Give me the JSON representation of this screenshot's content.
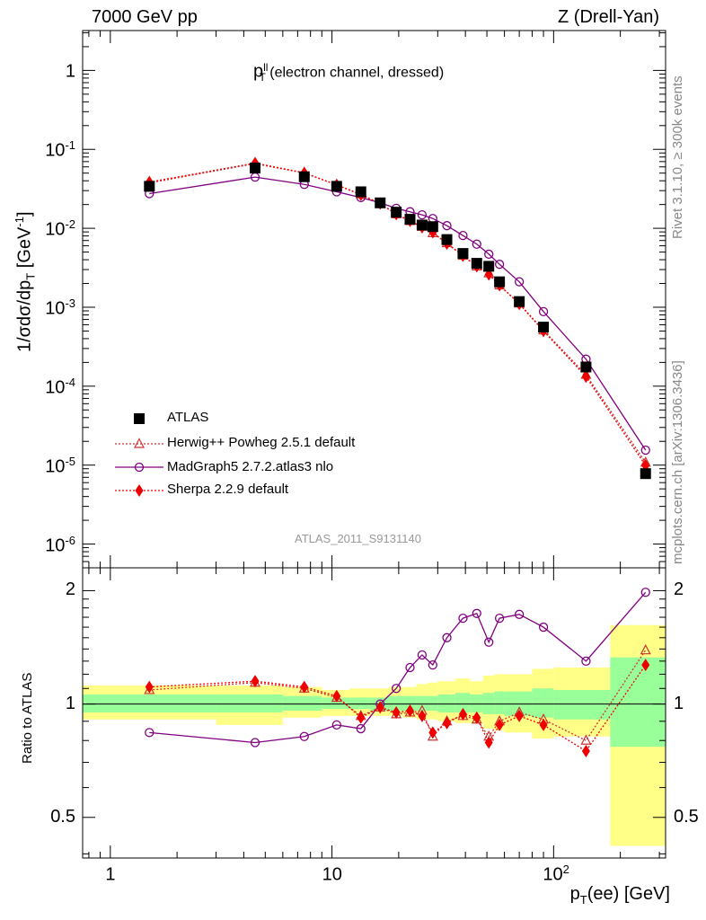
{
  "header": {
    "left": "7000 GeV pp",
    "right": "Z (Drell-Yan)"
  },
  "side_labels": {
    "rivet": "Rivet 3.1.10, ≥ 300k events",
    "mcplots": "mcplots.cern.ch [arXiv:1306.3436]"
  },
  "colors": {
    "atlas": "#000000",
    "herwig": "#cc3333",
    "madgraph": "#800080",
    "sherpa": "#ee0000",
    "band_inner": "#99ff99",
    "band_outer": "#ffff88"
  },
  "chart_data": [
    {
      "type": "scatter",
      "panel": "main",
      "title_main": "p",
      "title_sup": "ll",
      "title_sub": "T",
      "title_rest": "(electron channel, dressed)",
      "watermark": "ATLAS_2011_S9131140",
      "ylabel": "1/σdσ/dp_T [GeV^-1]",
      "ylabel_parts": {
        "a": "1/σdσ/dp",
        "sub": "T",
        "b": " [GeV",
        "sup": "-1",
        "c": "]"
      },
      "xscale": "log",
      "yscale": "log",
      "xlim": [
        0.75,
        320
      ],
      "ylim": [
        5e-07,
        3.2
      ],
      "ytick_labels": [
        {
          "v": 1,
          "m": "1",
          "e": ""
        },
        {
          "v": 0.1,
          "m": "10",
          "e": "-1"
        },
        {
          "v": 0.01,
          "m": "10",
          "e": "-2"
        },
        {
          "v": 0.001,
          "m": "10",
          "e": "-3"
        },
        {
          "v": 0.0001,
          "m": "10",
          "e": "-4"
        },
        {
          "v": 1e-05,
          "m": "10",
          "e": "-5"
        },
        {
          "v": 1e-06,
          "m": "10",
          "e": "-6"
        }
      ],
      "legend_position": "bottom-left",
      "x": [
        1.5,
        4.5,
        7.5,
        10.5,
        13.5,
        16.5,
        19.5,
        22.5,
        25.5,
        28.5,
        33,
        39,
        45,
        51,
        57,
        70,
        90,
        140,
        260
      ],
      "series": [
        {
          "name": "ATLAS",
          "marker": "square",
          "values": [
            0.034,
            0.058,
            0.045,
            0.034,
            0.029,
            0.021,
            0.016,
            0.013,
            0.011,
            0.0105,
            0.0072,
            0.0048,
            0.0036,
            0.0033,
            0.0021,
            0.00118,
            0.00056,
            0.000175,
            7.8e-06
          ]
        },
        {
          "name": "Herwig++ Powheg 2.5.1 default",
          "marker": "open-triangle",
          "line": "dotted",
          "values": [
            0.0375,
            0.066,
            0.05,
            0.0355,
            0.027,
            0.0205,
            0.0151,
            0.0124,
            0.0105,
            0.0087,
            0.0065,
            0.0045,
            0.0033,
            0.0027,
            0.0019,
            0.00112,
            0.00051,
            0.00014,
            1.08e-05
          ]
        },
        {
          "name": "MadGraph5 2.7.2.atlas3 nlo",
          "marker": "open-circle",
          "line": "solid",
          "values": [
            0.0275,
            0.0445,
            0.036,
            0.029,
            0.0245,
            0.021,
            0.0179,
            0.0162,
            0.0148,
            0.0133,
            0.0108,
            0.0081,
            0.0063,
            0.0047,
            0.0035,
            0.0021,
            0.00088,
            0.00022,
            1.55e-05
          ]
        },
        {
          "name": "Sherpa 2.2.9 default",
          "marker": "diamond",
          "line": "dotted",
          "values": [
            0.0385,
            0.067,
            0.0505,
            0.0355,
            0.0265,
            0.0206,
            0.0151,
            0.0124,
            0.0103,
            0.0089,
            0.0064,
            0.0045,
            0.0033,
            0.0026,
            0.0019,
            0.0011,
            0.0005,
            0.000132,
            9.9e-06
          ]
        }
      ],
      "legend_order": [
        "ATLAS",
        "Herwig++ Powheg 2.5.1 default",
        "MadGraph5 2.7.2.atlas3 nlo",
        "Sherpa 2.2.9 default"
      ]
    },
    {
      "type": "line",
      "panel": "ratio",
      "ylabel": "Ratio to ATLAS",
      "xlabel_parts": {
        "a": "p",
        "sub": "T",
        "b": "(ee) [GeV]"
      },
      "xscale": "log",
      "yscale": "log",
      "xlim": [
        0.75,
        320
      ],
      "ylim": [
        0.39,
        2.3
      ],
      "ytick_labels": [
        "2",
        "1",
        "0.5"
      ],
      "xtick_labels": [
        {
          "v": 1,
          "m": "1",
          "e": ""
        },
        {
          "v": 10,
          "m": "10",
          "e": ""
        },
        {
          "v": 100,
          "m": "10",
          "e": "2"
        }
      ],
      "reference_line": 1,
      "x": [
        1.5,
        4.5,
        7.5,
        10.5,
        13.5,
        16.5,
        19.5,
        22.5,
        25.5,
        28.5,
        33,
        39,
        45,
        51,
        57,
        70,
        90,
        140,
        260
      ],
      "series": [
        {
          "name": "Herwig++ Powheg 2.5.1 default",
          "marker": "open-triangle",
          "line": "dotted",
          "values": [
            1.09,
            1.14,
            1.1,
            1.04,
            0.93,
            0.98,
            0.94,
            0.95,
            0.96,
            0.82,
            0.9,
            0.93,
            0.91,
            0.82,
            0.9,
            0.95,
            0.91,
            0.8,
            1.39
          ]
        },
        {
          "name": "MadGraph5 2.7.2.atlas3 nlo",
          "marker": "open-circle",
          "line": "solid",
          "values": [
            0.84,
            0.79,
            0.82,
            0.88,
            0.86,
            1.0,
            1.1,
            1.25,
            1.35,
            1.27,
            1.5,
            1.69,
            1.74,
            1.46,
            1.69,
            1.73,
            1.6,
            1.3,
            1.98
          ]
        },
        {
          "name": "Sherpa 2.2.9 default",
          "marker": "diamond",
          "line": "dotted",
          "values": [
            1.11,
            1.15,
            1.11,
            1.05,
            0.92,
            0.98,
            0.95,
            0.96,
            0.93,
            0.84,
            0.89,
            0.94,
            0.92,
            0.79,
            0.88,
            0.93,
            0.88,
            0.75,
            1.27
          ]
        }
      ],
      "uncertainty_bins": [
        {
          "x0": 0.75,
          "x1": 3,
          "inner": [
            0.95,
            1.06
          ],
          "outer": [
            0.91,
            1.12
          ]
        },
        {
          "x0": 3,
          "x1": 6,
          "inner": [
            0.95,
            1.06
          ],
          "outer": [
            0.88,
            1.12
          ]
        },
        {
          "x0": 6,
          "x1": 9,
          "inner": [
            0.96,
            1.05
          ],
          "outer": [
            0.92,
            1.11
          ]
        },
        {
          "x0": 9,
          "x1": 12,
          "inner": [
            0.97,
            1.04
          ],
          "outer": [
            0.93,
            1.09
          ]
        },
        {
          "x0": 12,
          "x1": 15,
          "inner": [
            0.97,
            1.04
          ],
          "outer": [
            0.93,
            1.1
          ]
        },
        {
          "x0": 15,
          "x1": 18,
          "inner": [
            0.96,
            1.04
          ],
          "outer": [
            0.93,
            1.1
          ]
        },
        {
          "x0": 18,
          "x1": 21,
          "inner": [
            0.96,
            1.05
          ],
          "outer": [
            0.93,
            1.11
          ]
        },
        {
          "x0": 21,
          "x1": 24,
          "inner": [
            0.96,
            1.05
          ],
          "outer": [
            0.92,
            1.11
          ]
        },
        {
          "x0": 24,
          "x1": 27,
          "inner": [
            0.96,
            1.05
          ],
          "outer": [
            0.91,
            1.13
          ]
        },
        {
          "x0": 27,
          "x1": 30,
          "inner": [
            0.96,
            1.05
          ],
          "outer": [
            0.91,
            1.14
          ]
        },
        {
          "x0": 30,
          "x1": 36,
          "inner": [
            0.95,
            1.06
          ],
          "outer": [
            0.9,
            1.15
          ]
        },
        {
          "x0": 36,
          "x1": 42,
          "inner": [
            0.95,
            1.07
          ],
          "outer": [
            0.89,
            1.17
          ]
        },
        {
          "x0": 42,
          "x1": 48,
          "inner": [
            0.95,
            1.06
          ],
          "outer": [
            0.89,
            1.15
          ]
        },
        {
          "x0": 48,
          "x1": 54,
          "inner": [
            0.94,
            1.07
          ],
          "outer": [
            0.86,
            1.19
          ]
        },
        {
          "x0": 54,
          "x1": 60,
          "inner": [
            0.94,
            1.08
          ],
          "outer": [
            0.85,
            1.2
          ]
        },
        {
          "x0": 60,
          "x1": 80,
          "inner": [
            0.93,
            1.08
          ],
          "outer": [
            0.84,
            1.2
          ]
        },
        {
          "x0": 80,
          "x1": 100,
          "inner": [
            0.92,
            1.1
          ],
          "outer": [
            0.81,
            1.24
          ]
        },
        {
          "x0": 100,
          "x1": 180,
          "inner": [
            0.91,
            1.09
          ],
          "outer": [
            0.82,
            1.25
          ]
        },
        {
          "x0": 180,
          "x1": 320,
          "inner": [
            0.77,
            1.33
          ],
          "outer": [
            0.42,
            1.62
          ]
        }
      ]
    }
  ]
}
